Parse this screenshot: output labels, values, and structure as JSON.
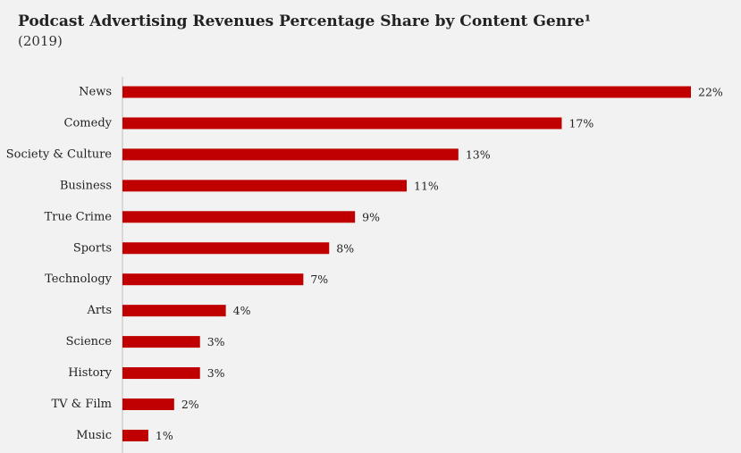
{
  "chart_data": {
    "type": "bar",
    "orientation": "horizontal",
    "title": "Podcast Advertising Revenues Percentage Share by Content Genre¹",
    "subtitle": "(2019)",
    "categories": [
      "News",
      "Comedy",
      "Society & Culture",
      "Business",
      "True Crime",
      "Sports",
      "Technology",
      "Arts",
      "Science",
      "History",
      "TV & Film",
      "Music"
    ],
    "values": [
      22,
      17,
      13,
      11,
      9,
      8,
      7,
      4,
      3,
      3,
      2,
      1
    ],
    "value_labels": [
      "22%",
      "17%",
      "13%",
      "11%",
      "9%",
      "8%",
      "7%",
      "4%",
      "3%",
      "3%",
      "2%",
      "1%"
    ],
    "unit": "%",
    "xlim": [
      0,
      22
    ],
    "grid": false,
    "bar_color": "#c00000"
  }
}
